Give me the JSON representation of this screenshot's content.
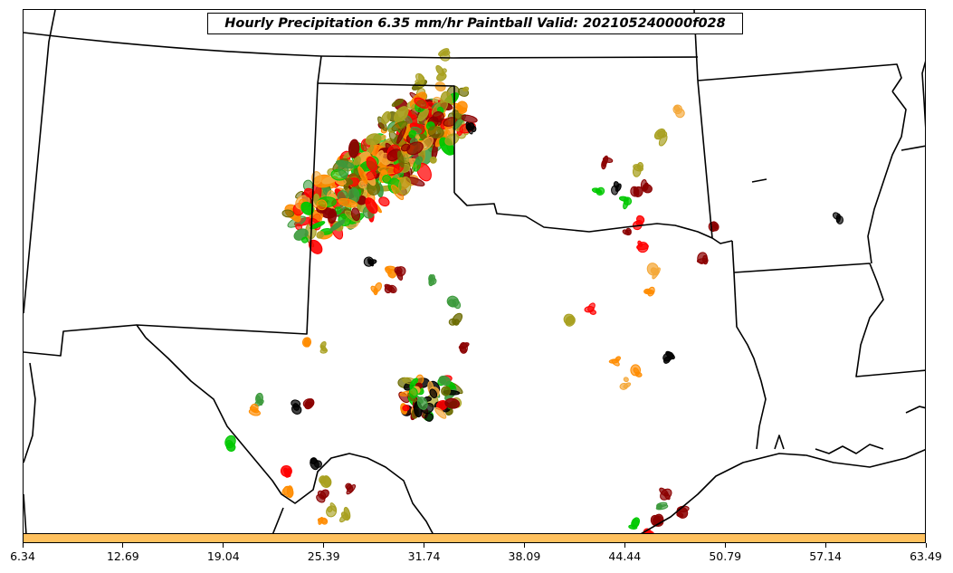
{
  "title": "Hourly Precipitation 6.35 mm/hr Paintball Valid: 202105240000f028",
  "colorbar": {
    "color": "#FFC15E",
    "tick_labels": [
      "6.34",
      "12.69",
      "19.04",
      "25.39",
      "31.74",
      "38.09",
      "44.44",
      "50.79",
      "57.14",
      "63.49"
    ]
  },
  "paintball_colors": [
    "#8B0000",
    "#FF0000",
    "#FF8C00",
    "#F4A83A",
    "#A8A020",
    "#6B6B00",
    "#00C800",
    "#3C9A3C",
    "#000000"
  ]
}
